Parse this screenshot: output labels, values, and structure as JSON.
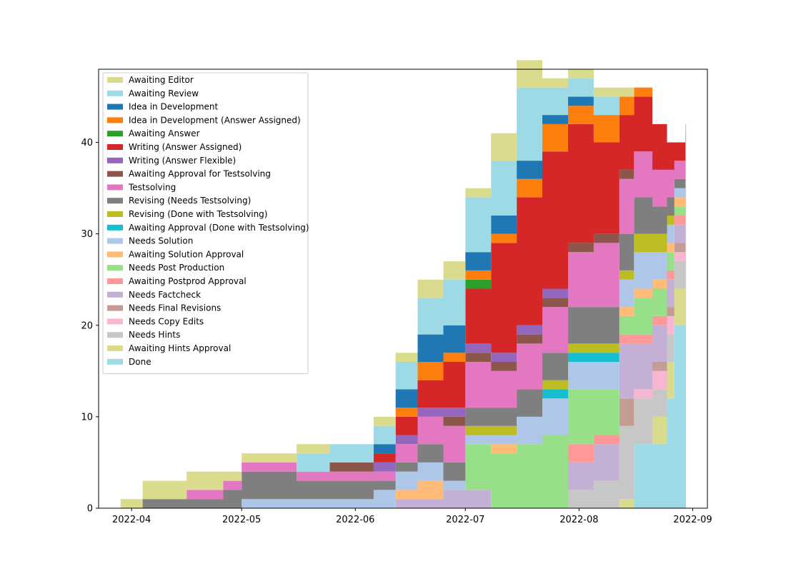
{
  "chart_data": {
    "type": "area",
    "stacked": true,
    "x": [
      "2022-03-29",
      "2022-04-04",
      "2022-04-16",
      "2022-04-26",
      "2022-05-01",
      "2022-05-16",
      "2022-05-25",
      "2022-06-06",
      "2022-06-12",
      "2022-06-18",
      "2022-06-25",
      "2022-07-01",
      "2022-07-08",
      "2022-07-15",
      "2022-07-22",
      "2022-07-29",
      "2022-08-05",
      "2022-08-12",
      "2022-08-16",
      "2022-08-21",
      "2022-08-25",
      "2022-08-27",
      "2022-08-30"
    ],
    "series": [
      {
        "name": "Done",
        "color": "#9edae5",
        "values": [
          0,
          0,
          0,
          0,
          0,
          0,
          0,
          0,
          0,
          0,
          0,
          0,
          0,
          0,
          0,
          0,
          0,
          0,
          7,
          7,
          12,
          20,
          31
        ]
      },
      {
        "name": "Awaiting Hints Approval",
        "color": "#dbdb8d",
        "values": [
          0,
          0,
          0,
          0,
          0,
          0,
          0,
          0,
          0,
          0,
          0,
          0,
          0,
          0,
          0,
          0,
          0,
          1,
          0,
          3,
          4,
          4,
          1
        ]
      },
      {
        "name": "Needs Hints",
        "color": "#c7c7c7",
        "values": [
          0,
          0,
          0,
          0,
          0,
          0,
          0,
          0,
          0,
          0,
          0,
          0,
          0,
          0,
          0,
          2,
          3,
          8,
          5,
          3,
          3,
          3,
          7
        ]
      },
      {
        "name": "Needs Copy Edits",
        "color": "#f7b6d2",
        "values": [
          0,
          0,
          0,
          0,
          0,
          0,
          0,
          0,
          0,
          0,
          0,
          0,
          0,
          0,
          0,
          0,
          0,
          0,
          1,
          2,
          2,
          1,
          1
        ]
      },
      {
        "name": "Needs Final Revisions",
        "color": "#c49c94",
        "values": [
          0,
          0,
          0,
          0,
          0,
          0,
          0,
          0,
          0,
          0,
          0,
          0,
          0,
          0,
          0,
          0,
          0,
          3,
          0,
          1,
          1,
          1,
          1
        ]
      },
      {
        "name": "Needs Factcheck",
        "color": "#c5b0d5",
        "values": [
          0,
          0,
          0,
          0,
          0,
          0,
          0,
          0,
          1,
          1,
          2,
          2,
          0,
          0,
          0,
          3,
          4,
          6,
          5,
          4,
          3,
          2,
          1
        ]
      },
      {
        "name": "Awaiting Postprod Approval",
        "color": "#ff9896",
        "values": [
          0,
          0,
          0,
          0,
          0,
          0,
          0,
          0,
          0,
          0,
          0,
          0,
          0,
          0,
          0,
          2,
          1,
          1,
          1,
          1,
          1,
          1,
          0
        ]
      },
      {
        "name": "Needs Post Production",
        "color": "#98df8a",
        "values": [
          0,
          0,
          0,
          0,
          0,
          0,
          0,
          0,
          0,
          0,
          0,
          5,
          6,
          7,
          8,
          6,
          5,
          2,
          4,
          3,
          2,
          1,
          0
        ]
      },
      {
        "name": "Awaiting Solution Approval",
        "color": "#ffbb78",
        "values": [
          0,
          0,
          0,
          0,
          0,
          0,
          0,
          0,
          1,
          2,
          0,
          0,
          1,
          0,
          0,
          0,
          0,
          1,
          1,
          1,
          1,
          1,
          0
        ]
      },
      {
        "name": "Needs Solution",
        "color": "#aec7e8",
        "values": [
          0,
          0,
          0,
          0,
          1,
          1,
          1,
          2,
          2,
          2,
          1,
          1,
          1,
          3,
          4,
          3,
          3,
          3,
          4,
          3,
          2,
          1,
          0
        ]
      },
      {
        "name": "Awaiting Approval (Done with Testsolving)",
        "color": "#17becf",
        "values": [
          0,
          0,
          0,
          0,
          0,
          0,
          0,
          0,
          0,
          0,
          0,
          0,
          0,
          0,
          1,
          1,
          1,
          0,
          0,
          0,
          0,
          0,
          0
        ]
      },
      {
        "name": "Revising (Done with Testsolving)",
        "color": "#bcbd22",
        "values": [
          0,
          0,
          0,
          0,
          0,
          0,
          0,
          0,
          0,
          0,
          0,
          1,
          1,
          0,
          1,
          1,
          1,
          1,
          2,
          2,
          1,
          0,
          0
        ]
      },
      {
        "name": "Revising (Needs Testsolving)",
        "color": "#7f7f7f",
        "values": [
          0,
          1,
          1,
          2,
          3,
          2,
          2,
          1,
          1,
          2,
          2,
          2,
          2,
          3,
          3,
          4,
          4,
          4,
          4,
          3,
          2,
          1,
          0
        ]
      },
      {
        "name": "Testsolving",
        "color": "#e377c2",
        "values": [
          0,
          0,
          1,
          1,
          1,
          1,
          1,
          1,
          2,
          3,
          4,
          5,
          4,
          5,
          5,
          6,
          7,
          6,
          5,
          4,
          3,
          2,
          0
        ]
      },
      {
        "name": "Awaiting Approval for Testsolving",
        "color": "#8c564b",
        "values": [
          0,
          0,
          0,
          0,
          0,
          0,
          1,
          0,
          0,
          0,
          1,
          1,
          1,
          1,
          1,
          1,
          1,
          1,
          0,
          0,
          0,
          0,
          0
        ]
      },
      {
        "name": "Writing (Answer Flexible)",
        "color": "#9467bd",
        "values": [
          0,
          0,
          0,
          0,
          0,
          0,
          0,
          1,
          1,
          1,
          1,
          1,
          1,
          1,
          1,
          0,
          0,
          0,
          0,
          0,
          0,
          0,
          0
        ]
      },
      {
        "name": "Writing (Answer Assigned)",
        "color": "#d62728",
        "values": [
          0,
          0,
          0,
          0,
          0,
          0,
          0,
          1,
          2,
          3,
          5,
          6,
          12,
          14,
          15,
          13,
          10,
          6,
          6,
          5,
          3,
          2,
          0
        ]
      },
      {
        "name": "Awaiting Answer",
        "color": "#2ca02c",
        "values": [
          0,
          0,
          0,
          0,
          0,
          0,
          0,
          0,
          0,
          0,
          0,
          1,
          0,
          0,
          0,
          0,
          0,
          0,
          0,
          0,
          0,
          0,
          0
        ]
      },
      {
        "name": "Idea in Development (Answer Assigned)",
        "color": "#ff7f0e",
        "values": [
          0,
          0,
          0,
          0,
          0,
          0,
          0,
          0,
          1,
          2,
          1,
          1,
          1,
          2,
          3,
          2,
          3,
          2,
          1,
          0,
          0,
          0,
          0
        ]
      },
      {
        "name": "Idea in Development",
        "color": "#1f77b4",
        "values": [
          0,
          0,
          0,
          0,
          0,
          0,
          0,
          1,
          2,
          3,
          3,
          2,
          2,
          2,
          1,
          1,
          0,
          0,
          0,
          0,
          0,
          0,
          0
        ]
      },
      {
        "name": "Awaiting Review",
        "color": "#9edae5",
        "values": [
          0,
          0,
          0,
          0,
          0,
          2,
          2,
          2,
          3,
          4,
          5,
          6,
          6,
          8,
          3,
          2,
          2,
          0,
          0,
          0,
          0,
          0,
          0
        ]
      },
      {
        "name": "Awaiting Editor",
        "color": "#dbdb8d",
        "values": [
          1,
          2,
          2,
          1,
          1,
          1,
          0,
          1,
          1,
          2,
          2,
          1,
          3,
          3,
          1,
          1,
          1,
          1,
          0,
          0,
          0,
          0,
          0
        ]
      }
    ],
    "legend_order": [
      "Awaiting Editor",
      "Awaiting Review",
      "Idea in Development",
      "Idea in Development (Answer Assigned)",
      "Awaiting Answer",
      "Writing (Answer Assigned)",
      "Writing (Answer Flexible)",
      "Awaiting Approval for Testsolving",
      "Testsolving",
      "Revising (Needs Testsolving)",
      "Revising (Done with Testsolving)",
      "Awaiting Approval (Done with Testsolving)",
      "Needs Solution",
      "Awaiting Solution Approval",
      "Needs Post Production",
      "Awaiting Postprod Approval",
      "Needs Factcheck",
      "Needs Final Revisions",
      "Needs Copy Edits",
      "Needs Hints",
      "Awaiting Hints Approval",
      "Done"
    ],
    "xlim": [
      "2022-03-23",
      "2022-09-05"
    ],
    "ylim": [
      0,
      48
    ],
    "x_ticks": [
      "2022-04",
      "2022-05",
      "2022-06",
      "2022-07",
      "2022-08",
      "2022-09"
    ],
    "x_tick_dates": [
      "2022-04-01",
      "2022-05-01",
      "2022-06-01",
      "2022-07-01",
      "2022-08-01",
      "2022-09-01"
    ],
    "y_ticks": [
      0,
      10,
      20,
      30,
      40
    ],
    "title": "",
    "xlabel": "",
    "ylabel": "",
    "grid": false,
    "legend_position": "upper-left"
  }
}
